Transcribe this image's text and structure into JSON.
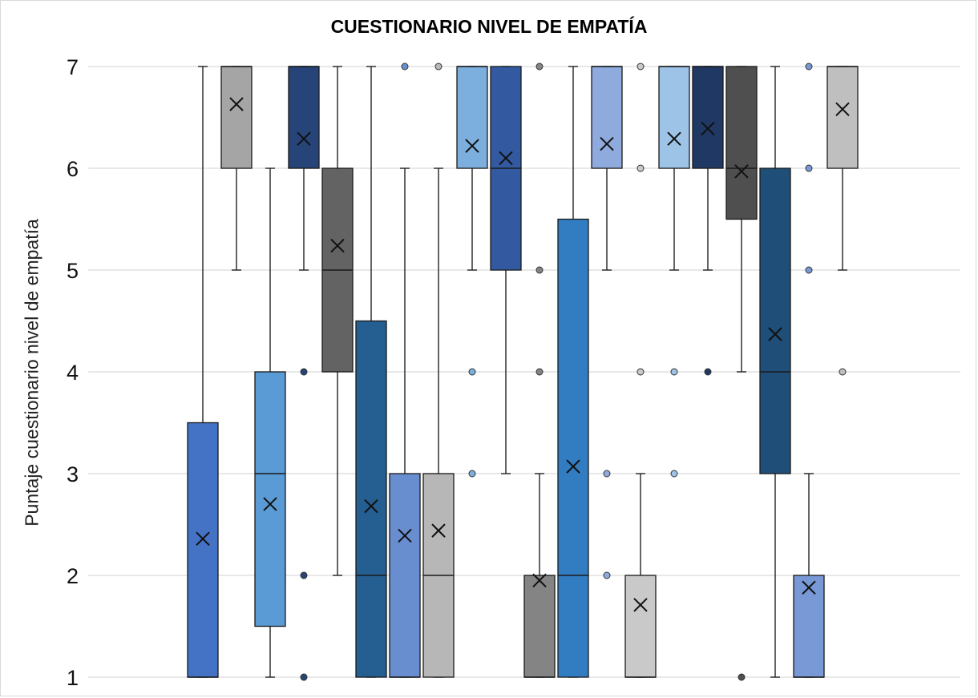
{
  "chart_data": {
    "type": "box",
    "title": "CUESTIONARIO NIVEL DE EMPATÍA",
    "xlabel": "",
    "ylabel": "Puntaje cuestionario nivel de empatía",
    "ylim": [
      1,
      7
    ],
    "yticks": [
      1,
      2,
      3,
      4,
      5,
      6,
      7
    ],
    "grid": true,
    "boxes": [
      {
        "min": 1,
        "q1": 1,
        "median": 1,
        "q3": 3.5,
        "max": 7,
        "mean": 2.36,
        "outliers": [],
        "color": "#4472C4"
      },
      {
        "min": 5,
        "q1": 6,
        "median": 7,
        "q3": 7,
        "max": 7,
        "mean": 6.63,
        "outliers": [],
        "color": "#A5A5A5"
      },
      {
        "min": 1,
        "q1": 1.5,
        "median": 3,
        "q3": 4,
        "max": 6,
        "mean": 2.7,
        "outliers": [],
        "color": "#5B9BD5"
      },
      {
        "min": 5,
        "q1": 6,
        "median": 7,
        "q3": 7,
        "max": 7,
        "mean": 6.29,
        "outliers": [
          4,
          2,
          1
        ],
        "color": "#264478"
      },
      {
        "min": 2,
        "q1": 4,
        "median": 5,
        "q3": 6,
        "max": 7,
        "mean": 5.24,
        "outliers": [],
        "color": "#636363"
      },
      {
        "min": 1,
        "q1": 1,
        "median": 2,
        "q3": 4.5,
        "max": 7,
        "mean": 2.68,
        "outliers": [],
        "color": "#255E91"
      },
      {
        "min": 1,
        "q1": 1,
        "median": 1,
        "q3": 3,
        "max": 6,
        "mean": 2.39,
        "outliers": [
          7
        ],
        "color": "#698ED0"
      },
      {
        "min": 1,
        "q1": 1,
        "median": 2,
        "q3": 3,
        "max": 6,
        "mean": 2.44,
        "outliers": [
          7
        ],
        "color": "#B7B7B7"
      },
      {
        "min": 5,
        "q1": 6,
        "median": 7,
        "q3": 7,
        "max": 7,
        "mean": 6.22,
        "outliers": [
          4,
          3
        ],
        "color": "#7CAFDD"
      },
      {
        "min": 3,
        "q1": 5,
        "median": 6,
        "q3": 7,
        "max": 7,
        "mean": 6.1,
        "outliers": [],
        "color": "#335AA1"
      },
      {
        "min": 1,
        "q1": 1,
        "median": 1,
        "q3": 2,
        "max": 3,
        "mean": 1.95,
        "outliers": [
          7,
          5,
          4
        ],
        "color": "#848484"
      },
      {
        "min": 1,
        "q1": 1,
        "median": 2,
        "q3": 5.5,
        "max": 7,
        "mean": 3.07,
        "outliers": [],
        "color": "#327DC2"
      },
      {
        "min": 5,
        "q1": 6,
        "median": 7,
        "q3": 7,
        "max": 7,
        "mean": 6.24,
        "outliers": [
          3,
          2
        ],
        "color": "#8FAADC"
      },
      {
        "min": 1,
        "q1": 1,
        "median": 1,
        "q3": 2,
        "max": 3,
        "mean": 1.71,
        "outliers": [
          7,
          6,
          4
        ],
        "color": "#C9C9C9"
      },
      {
        "min": 5,
        "q1": 6,
        "median": 7,
        "q3": 7,
        "max": 7,
        "mean": 6.29,
        "outliers": [
          4,
          3
        ],
        "color": "#9DC3E6"
      },
      {
        "min": 5,
        "q1": 6,
        "median": 7,
        "q3": 7,
        "max": 7,
        "mean": 6.39,
        "outliers": [
          4
        ],
        "color": "#203864"
      },
      {
        "min": 4,
        "q1": 5.5,
        "median": 6,
        "q3": 7,
        "max": 7,
        "mean": 5.97,
        "outliers": [
          1
        ],
        "color": "#4F4F4F"
      },
      {
        "min": 1,
        "q1": 3,
        "median": 4,
        "q3": 6,
        "max": 7,
        "mean": 4.37,
        "outliers": [],
        "color": "#1F4E79"
      },
      {
        "min": 1,
        "q1": 1,
        "median": 1,
        "q3": 2,
        "max": 3,
        "mean": 1.88,
        "outliers": [
          7,
          6,
          5
        ],
        "color": "#7898D6"
      },
      {
        "min": 5,
        "q1": 6,
        "median": 7,
        "q3": 7,
        "max": 7,
        "mean": 6.58,
        "outliers": [
          4
        ],
        "color": "#BFBFBF"
      }
    ]
  }
}
